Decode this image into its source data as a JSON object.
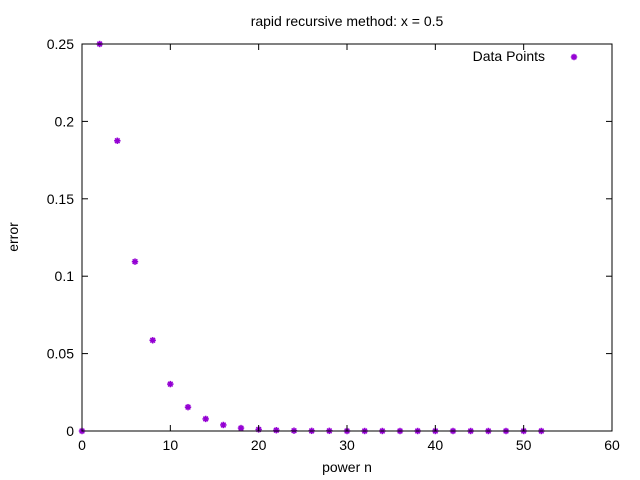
{
  "chart_data": {
    "type": "scatter",
    "title": "rapid recursive method: x = 0.5",
    "xlabel": "power n",
    "ylabel": "error",
    "xlim": [
      0,
      60
    ],
    "ylim": [
      0,
      0.25
    ],
    "xticks": [
      0,
      10,
      20,
      30,
      40,
      50,
      60
    ],
    "yticks": [
      0,
      0.05,
      0.1,
      0.15,
      0.2,
      0.25
    ],
    "xtick_labels": [
      "0",
      "10",
      "20",
      "30",
      "40",
      "50",
      "60"
    ],
    "ytick_labels": [
      "0",
      "0.05",
      "0.1",
      "0.15",
      "0.2",
      "0.25"
    ],
    "legend_position": "top-right",
    "grid": false,
    "series": [
      {
        "name": "Data Points",
        "color": "#9400d3",
        "marker": "asterisk",
        "x": [
          0,
          2,
          4,
          6,
          8,
          10,
          12,
          14,
          16,
          18,
          20,
          22,
          24,
          26,
          28,
          30,
          32,
          34,
          36,
          38,
          40,
          42,
          44,
          46,
          48,
          50,
          52
        ],
        "y": [
          0,
          0.25,
          0.1875,
          0.1094,
          0.0586,
          0.0303,
          0.0154,
          0.0078,
          0.0039,
          0.0019,
          0.001,
          0.0005,
          0.0002,
          0.0001,
          0.0001,
          0,
          0,
          0,
          0,
          0,
          0,
          0,
          0,
          0,
          0,
          0,
          0
        ]
      }
    ]
  }
}
